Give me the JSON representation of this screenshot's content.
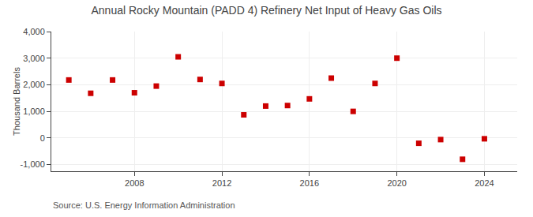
{
  "chart_data": {
    "type": "scatter",
    "title": "Annual Rocky Mountain (PADD 4) Refinery Net Input of Heavy Gas Oils",
    "ylabel": "Thousand Barrels",
    "annotations": [
      "Source: U.S. Energy Information Administration"
    ],
    "x": [
      2005,
      2006,
      2007,
      2008,
      2009,
      2010,
      2011,
      2012,
      2013,
      2014,
      2015,
      2016,
      2017,
      2018,
      2019,
      2020,
      2021,
      2022,
      2023,
      2024
    ],
    "values": [
      2180,
      1680,
      2180,
      1700,
      1950,
      3050,
      2200,
      2050,
      870,
      1200,
      1220,
      1470,
      2250,
      1000,
      2050,
      3000,
      -200,
      -60,
      -800,
      -30
    ],
    "color": "#cc0000",
    "marker": "square",
    "xlim": [
      2004.2,
      2025.5
    ],
    "xticks": [
      2008,
      2012,
      2016,
      2020,
      2024
    ],
    "ylim": [
      -1250,
      4000
    ],
    "yticks": [
      {
        "value": -1000,
        "label": "-1,000"
      },
      0,
      {
        "value": 1000,
        "label": "1,000"
      },
      {
        "value": 2000,
        "label": "2,000"
      },
      {
        "value": 3000,
        "label": "3,000"
      },
      {
        "value": 4000,
        "label": "4,000"
      }
    ],
    "grid": true
  }
}
